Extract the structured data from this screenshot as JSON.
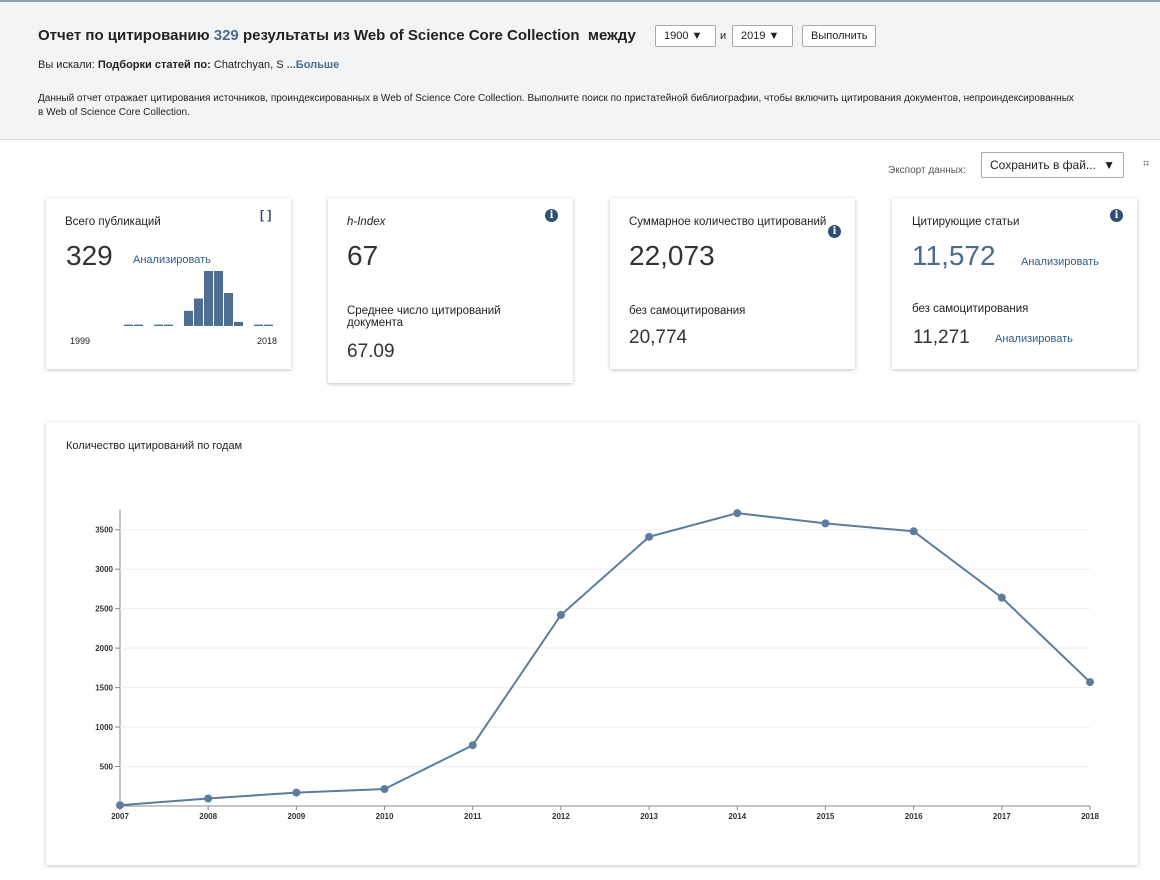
{
  "header": {
    "title": "Отчет по цитированию",
    "count": "329",
    "title_rest": "результаты из Web of Science Core Collection",
    "between": "между",
    "from_year": "1900",
    "and": "и",
    "to_year": "2019",
    "run_button": "Выполнить",
    "searched_label": "Вы искали:",
    "searched_kind": "Подборки статей по:",
    "searched_value": "Chatrchyan, S",
    "more": "...Больше",
    "description": "Данный отчет отражает цитирования источников, проиндексированных в Web of Science Core Collection. Выполните поиск по пристатейной библиографии, чтобы включить цитирования документов, непроиндексированных в Web of Science Core Collection."
  },
  "export": {
    "label": "Экспорт данных:",
    "select": "Сохранить в фай..."
  },
  "cards": [
    {
      "title": "Всего публикаций",
      "value": "329",
      "link": "Анализировать",
      "histogram": {
        "type": "bar",
        "values": [
          2,
          2,
          0,
          2,
          2,
          0,
          22,
          40,
          80,
          80,
          48,
          6,
          0,
          2,
          2
        ],
        "color": "#4f6f92",
        "start_label": "1999",
        "end_label": "2018"
      }
    },
    {
      "title": "h-Index",
      "value": "67",
      "sub_title": "Среднее число цитирований документа",
      "sub_value": "67.09"
    },
    {
      "title": "Суммарное количество цитирований",
      "value": "22,073",
      "sub_title": "без самоцитирования",
      "sub_value": "20,774"
    },
    {
      "title": "Цитирующие статьи",
      "value": "11,572",
      "link": "Анализировать",
      "sub_title": "без самоцитирования",
      "sub_value": "11,271",
      "sub_link": "Анализировать"
    }
  ],
  "chart_data": {
    "type": "line",
    "title": "Количество цитирований по годам",
    "categories": [
      "2007",
      "2008",
      "2009",
      "2010",
      "2011",
      "2012",
      "2013",
      "2014",
      "2015",
      "2016",
      "2017",
      "2018"
    ],
    "values": [
      10,
      95,
      170,
      215,
      770,
      2420,
      3410,
      3710,
      3580,
      3480,
      2640,
      1570
    ],
    "color": "#5b7c9d",
    "ylim": [
      0,
      3750
    ],
    "yticks": [
      500,
      1000,
      1500,
      2000,
      2500,
      3000,
      3500
    ],
    "grid": true
  }
}
